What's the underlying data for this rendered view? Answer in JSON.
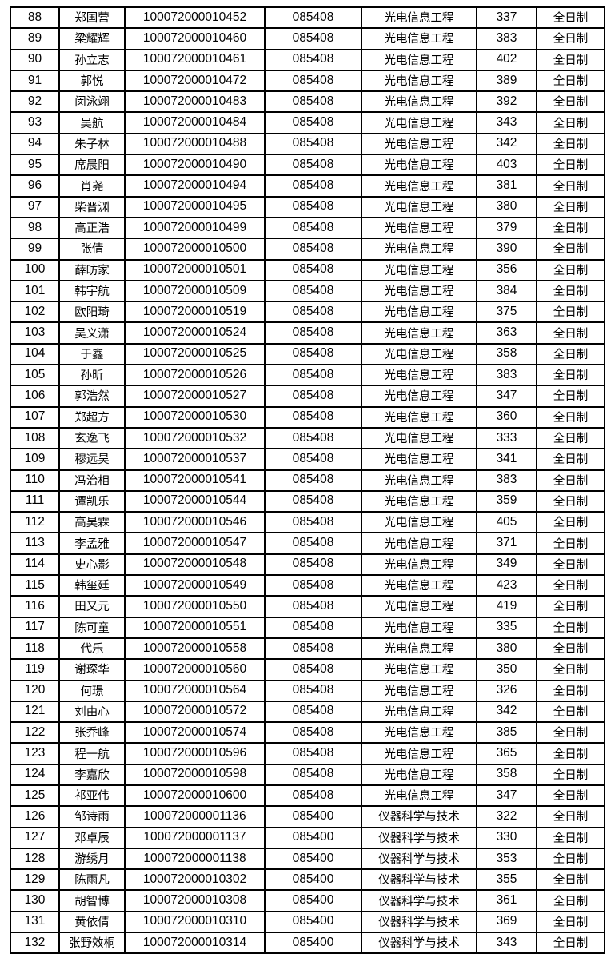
{
  "table": {
    "rows": [
      [
        "88",
        "郑国营",
        "100072000010452",
        "085408",
        "光电信息工程",
        "337",
        "全日制"
      ],
      [
        "89",
        "梁耀辉",
        "100072000010460",
        "085408",
        "光电信息工程",
        "383",
        "全日制"
      ],
      [
        "90",
        "孙立志",
        "100072000010461",
        "085408",
        "光电信息工程",
        "402",
        "全日制"
      ],
      [
        "91",
        "郭悦",
        "100072000010472",
        "085408",
        "光电信息工程",
        "389",
        "全日制"
      ],
      [
        "92",
        "闵泳翊",
        "100072000010483",
        "085408",
        "光电信息工程",
        "392",
        "全日制"
      ],
      [
        "93",
        "吴航",
        "100072000010484",
        "085408",
        "光电信息工程",
        "343",
        "全日制"
      ],
      [
        "94",
        "朱子林",
        "100072000010488",
        "085408",
        "光电信息工程",
        "342",
        "全日制"
      ],
      [
        "95",
        "席晨阳",
        "100072000010490",
        "085408",
        "光电信息工程",
        "403",
        "全日制"
      ],
      [
        "96",
        "肖尧",
        "100072000010494",
        "085408",
        "光电信息工程",
        "381",
        "全日制"
      ],
      [
        "97",
        "柴晋渊",
        "100072000010495",
        "085408",
        "光电信息工程",
        "380",
        "全日制"
      ],
      [
        "98",
        "高正浩",
        "100072000010499",
        "085408",
        "光电信息工程",
        "379",
        "全日制"
      ],
      [
        "99",
        "张倩",
        "100072000010500",
        "085408",
        "光电信息工程",
        "390",
        "全日制"
      ],
      [
        "100",
        "薛昉家",
        "100072000010501",
        "085408",
        "光电信息工程",
        "356",
        "全日制"
      ],
      [
        "101",
        "韩宇航",
        "100072000010509",
        "085408",
        "光电信息工程",
        "384",
        "全日制"
      ],
      [
        "102",
        "欧阳琦",
        "100072000010519",
        "085408",
        "光电信息工程",
        "375",
        "全日制"
      ],
      [
        "103",
        "吴义潇",
        "100072000010524",
        "085408",
        "光电信息工程",
        "363",
        "全日制"
      ],
      [
        "104",
        "于鑫",
        "100072000010525",
        "085408",
        "光电信息工程",
        "358",
        "全日制"
      ],
      [
        "105",
        "孙昕",
        "100072000010526",
        "085408",
        "光电信息工程",
        "383",
        "全日制"
      ],
      [
        "106",
        "郭浩然",
        "100072000010527",
        "085408",
        "光电信息工程",
        "347",
        "全日制"
      ],
      [
        "107",
        "郑超方",
        "100072000010530",
        "085408",
        "光电信息工程",
        "360",
        "全日制"
      ],
      [
        "108",
        "玄逸飞",
        "100072000010532",
        "085408",
        "光电信息工程",
        "333",
        "全日制"
      ],
      [
        "109",
        "穆远昊",
        "100072000010537",
        "085408",
        "光电信息工程",
        "341",
        "全日制"
      ],
      [
        "110",
        "冯治相",
        "100072000010541",
        "085408",
        "光电信息工程",
        "383",
        "全日制"
      ],
      [
        "111",
        "谭凯乐",
        "100072000010544",
        "085408",
        "光电信息工程",
        "359",
        "全日制"
      ],
      [
        "112",
        "高昊霖",
        "100072000010546",
        "085408",
        "光电信息工程",
        "405",
        "全日制"
      ],
      [
        "113",
        "李孟雅",
        "100072000010547",
        "085408",
        "光电信息工程",
        "371",
        "全日制"
      ],
      [
        "114",
        "史心影",
        "100072000010548",
        "085408",
        "光电信息工程",
        "349",
        "全日制"
      ],
      [
        "115",
        "韩玺廷",
        "100072000010549",
        "085408",
        "光电信息工程",
        "423",
        "全日制"
      ],
      [
        "116",
        "田又元",
        "100072000010550",
        "085408",
        "光电信息工程",
        "419",
        "全日制"
      ],
      [
        "117",
        "陈可童",
        "100072000010551",
        "085408",
        "光电信息工程",
        "335",
        "全日制"
      ],
      [
        "118",
        "代乐",
        "100072000010558",
        "085408",
        "光电信息工程",
        "380",
        "全日制"
      ],
      [
        "119",
        "谢琛华",
        "100072000010560",
        "085408",
        "光电信息工程",
        "350",
        "全日制"
      ],
      [
        "120",
        "何璟",
        "100072000010564",
        "085408",
        "光电信息工程",
        "326",
        "全日制"
      ],
      [
        "121",
        "刘由心",
        "100072000010572",
        "085408",
        "光电信息工程",
        "342",
        "全日制"
      ],
      [
        "122",
        "张乔峰",
        "100072000010574",
        "085408",
        "光电信息工程",
        "385",
        "全日制"
      ],
      [
        "123",
        "程一航",
        "100072000010596",
        "085408",
        "光电信息工程",
        "365",
        "全日制"
      ],
      [
        "124",
        "李嘉欣",
        "100072000010598",
        "085408",
        "光电信息工程",
        "358",
        "全日制"
      ],
      [
        "125",
        "祁亚伟",
        "100072000010600",
        "085408",
        "光电信息工程",
        "347",
        "全日制"
      ],
      [
        "126",
        "邹诗雨",
        "100072000001136",
        "085400",
        "仪器科学与技术",
        "322",
        "全日制"
      ],
      [
        "127",
        "邓卓辰",
        "100072000001137",
        "085400",
        "仪器科学与技术",
        "330",
        "全日制"
      ],
      [
        "128",
        "游绣月",
        "100072000001138",
        "085400",
        "仪器科学与技术",
        "353",
        "全日制"
      ],
      [
        "129",
        "陈雨凡",
        "100072000010302",
        "085400",
        "仪器科学与技术",
        "355",
        "全日制"
      ],
      [
        "130",
        "胡智博",
        "100072000010308",
        "085400",
        "仪器科学与技术",
        "361",
        "全日制"
      ],
      [
        "131",
        "黄依倩",
        "100072000010310",
        "085400",
        "仪器科学与技术",
        "369",
        "全日制"
      ],
      [
        "132",
        "张野效桐",
        "100072000010314",
        "085400",
        "仪器科学与技术",
        "343",
        "全日制"
      ]
    ]
  }
}
